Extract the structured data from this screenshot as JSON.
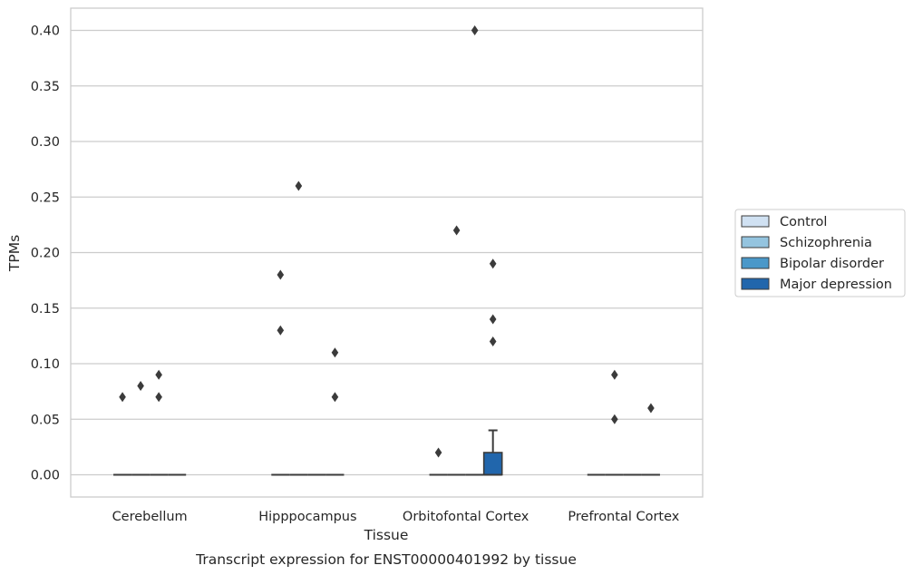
{
  "chart_data": {
    "type": "box",
    "caption": "Transcript expression for ENST00000401992 by tissue",
    "xlabel": "Tissue",
    "ylabel": "TPMs",
    "ylim": [
      -0.02,
      0.42
    ],
    "yticks": [
      0.0,
      0.05,
      0.1,
      0.15,
      0.2,
      0.25,
      0.3,
      0.35,
      0.4
    ],
    "ytick_labels": [
      "0.00",
      "0.05",
      "0.10",
      "0.15",
      "0.20",
      "0.25",
      "0.30",
      "0.35",
      "0.40"
    ],
    "grid": true,
    "legend_position": "right",
    "categories": [
      "Cerebellum",
      "Hipppocampus",
      "Orbitofontal Cortex",
      "Prefrontal Cortex"
    ],
    "series": [
      {
        "name": "Control",
        "color": "#d0e1f2",
        "boxes": [
          {
            "q1": 0,
            "median": 0,
            "q3": 0,
            "whislo": 0,
            "whishi": 0,
            "fliers": [
              0.07
            ]
          },
          {
            "q1": 0,
            "median": 0,
            "q3": 0,
            "whislo": 0,
            "whishi": 0,
            "fliers": [
              0.18,
              0.13
            ]
          },
          {
            "q1": 0,
            "median": 0,
            "q3": 0,
            "whislo": 0,
            "whishi": 0,
            "fliers": [
              0.02
            ]
          },
          {
            "q1": 0,
            "median": 0,
            "q3": 0,
            "whislo": 0,
            "whishi": 0,
            "fliers": []
          }
        ]
      },
      {
        "name": "Schizophrenia",
        "color": "#94c4df",
        "boxes": [
          {
            "q1": 0,
            "median": 0,
            "q3": 0,
            "whislo": 0,
            "whishi": 0,
            "fliers": [
              0.08
            ]
          },
          {
            "q1": 0,
            "median": 0,
            "q3": 0,
            "whislo": 0,
            "whishi": 0,
            "fliers": [
              0.26
            ]
          },
          {
            "q1": 0,
            "median": 0,
            "q3": 0,
            "whislo": 0,
            "whishi": 0,
            "fliers": [
              0.22
            ]
          },
          {
            "q1": 0,
            "median": 0,
            "q3": 0,
            "whislo": 0,
            "whishi": 0,
            "fliers": [
              0.09,
              0.05
            ]
          }
        ]
      },
      {
        "name": "Bipolar disorder",
        "color": "#4a98c9",
        "boxes": [
          {
            "q1": 0,
            "median": 0,
            "q3": 0,
            "whislo": 0,
            "whishi": 0,
            "fliers": [
              0.09,
              0.07
            ]
          },
          {
            "q1": 0,
            "median": 0,
            "q3": 0,
            "whislo": 0,
            "whishi": 0,
            "fliers": []
          },
          {
            "q1": 0,
            "median": 0,
            "q3": 0,
            "whislo": 0,
            "whishi": 0,
            "fliers": [
              0.4
            ]
          },
          {
            "q1": 0,
            "median": 0,
            "q3": 0,
            "whislo": 0,
            "whishi": 0,
            "fliers": []
          }
        ]
      },
      {
        "name": "Major depression",
        "color": "#2166ac",
        "boxes": [
          {
            "q1": 0,
            "median": 0,
            "q3": 0,
            "whislo": 0,
            "whishi": 0,
            "fliers": []
          },
          {
            "q1": 0,
            "median": 0,
            "q3": 0,
            "whislo": 0,
            "whishi": 0,
            "fliers": [
              0.11,
              0.07
            ]
          },
          {
            "q1": 0,
            "median": 0,
            "q3": 0.02,
            "whislo": 0,
            "whishi": 0.04,
            "fliers": [
              0.19,
              0.14,
              0.12
            ]
          },
          {
            "q1": 0,
            "median": 0,
            "q3": 0,
            "whislo": 0,
            "whishi": 0,
            "fliers": [
              0.06
            ]
          }
        ]
      }
    ]
  }
}
